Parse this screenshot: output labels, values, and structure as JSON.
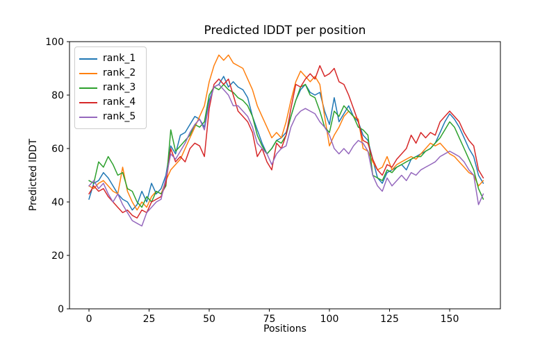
{
  "chart_data": {
    "type": "line",
    "title": "Predicted lDDT per position",
    "xlabel": "Positions",
    "ylabel": "Predicted lDDT",
    "xlim": [
      -8.1,
      171.1
    ],
    "ylim": [
      0,
      100
    ],
    "x_ticks": [
      0,
      25,
      50,
      75,
      100,
      125,
      150
    ],
    "y_ticks": [
      0,
      20,
      40,
      60,
      80,
      100
    ],
    "grid": false,
    "legend_position": "upper left",
    "x_start": 0,
    "x_step": 2,
    "series": [
      {
        "name": "rank_1",
        "color": "#1f77b4",
        "values": [
          41,
          47,
          48,
          51,
          49,
          46,
          43,
          41,
          40,
          37,
          39,
          44,
          40,
          47,
          43,
          45,
          50,
          61,
          58,
          65,
          66,
          69,
          72,
          71,
          68,
          78,
          83,
          84,
          87,
          83,
          85,
          83,
          82,
          79,
          72,
          67,
          62,
          58,
          60,
          63,
          64,
          66,
          72,
          78,
          82,
          84,
          81,
          80,
          81,
          74,
          69,
          79,
          70,
          73,
          76,
          72,
          70,
          65,
          63,
          56,
          49,
          47,
          51,
          52,
          53,
          54,
          52,
          56,
          57,
          58,
          59,
          60,
          62,
          66,
          70,
          73,
          71,
          68,
          64,
          60,
          57,
          50,
          47
        ]
      },
      {
        "name": "rank_2",
        "color": "#ff7f0e",
        "values": [
          46,
          45,
          47,
          48,
          46,
          44,
          43,
          53,
          44,
          40,
          37,
          40,
          38,
          42,
          44,
          43,
          48,
          52,
          54,
          56,
          60,
          64,
          68,
          72,
          76,
          85,
          91,
          95,
          93,
          95,
          92,
          91,
          90,
          86,
          82,
          76,
          72,
          68,
          64,
          66,
          64,
          70,
          78,
          85,
          89,
          87,
          85,
          87,
          84,
          72,
          61,
          65,
          68,
          72,
          74,
          72,
          71,
          60,
          59,
          55,
          52,
          53,
          57,
          52,
          54,
          55,
          56,
          57,
          56,
          58,
          60,
          62,
          61,
          62,
          60,
          58,
          57,
          55,
          53,
          51,
          50,
          46,
          48
        ]
      },
      {
        "name": "rank_3",
        "color": "#2ca02c",
        "values": [
          48,
          47,
          55,
          53,
          57,
          54,
          50,
          51,
          45,
          44,
          40,
          38,
          42,
          40,
          44,
          43,
          46,
          67,
          59,
          61,
          63,
          65,
          69,
          68,
          70,
          80,
          83,
          82,
          84,
          82,
          81,
          79,
          78,
          76,
          72,
          65,
          61,
          58,
          60,
          63,
          62,
          65,
          72,
          78,
          83,
          84,
          80,
          79,
          74,
          68,
          66,
          74,
          72,
          76,
          74,
          72,
          68,
          67,
          65,
          50,
          49,
          48,
          52,
          51,
          53,
          54,
          55,
          56,
          57,
          57,
          59,
          60,
          62,
          64,
          67,
          70,
          68,
          64,
          60,
          56,
          52,
          45,
          41
        ]
      },
      {
        "name": "rank_4",
        "color": "#d62728",
        "values": [
          43,
          46,
          44,
          45,
          42,
          40,
          38,
          36,
          37,
          35,
          34,
          37,
          36,
          40,
          41,
          42,
          47,
          60,
          55,
          57,
          55,
          60,
          62,
          61,
          57,
          75,
          84,
          86,
          84,
          86,
          80,
          74,
          72,
          70,
          66,
          57,
          60,
          55,
          52,
          62,
          60,
          65,
          75,
          84,
          83,
          86,
          88,
          86,
          91,
          87,
          88,
          90,
          85,
          84,
          80,
          75,
          70,
          63,
          62,
          56,
          52,
          50,
          54,
          53,
          56,
          58,
          60,
          65,
          62,
          66,
          64,
          66,
          65,
          70,
          72,
          74,
          72,
          70,
          66,
          63,
          61,
          52,
          49
        ]
      },
      {
        "name": "rank_5",
        "color": "#9467bd",
        "values": [
          46,
          48,
          45,
          47,
          43,
          40,
          43,
          39,
          36,
          33,
          32,
          31,
          36,
          38,
          40,
          41,
          49,
          58,
          56,
          59,
          62,
          66,
          69,
          71,
          67,
          77,
          83,
          84,
          82,
          80,
          76,
          76,
          74,
          72,
          68,
          62,
          60,
          58,
          54,
          58,
          60,
          61,
          68,
          72,
          74,
          75,
          74,
          73,
          70,
          68,
          65,
          60,
          58,
          60,
          58,
          61,
          63,
          62,
          59,
          50,
          46,
          44,
          49,
          46,
          48,
          50,
          48,
          51,
          50,
          52,
          53,
          54,
          55,
          57,
          58,
          59,
          58,
          57,
          55,
          52,
          50,
          39,
          43
        ]
      }
    ]
  }
}
